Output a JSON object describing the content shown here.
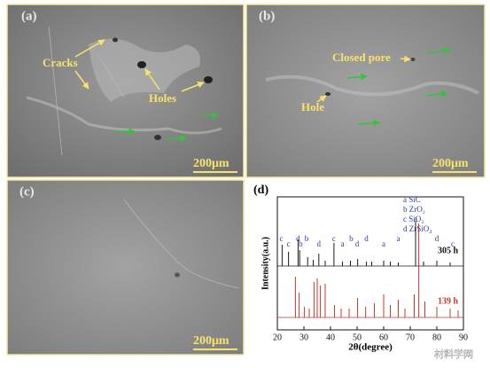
{
  "panels": [
    {
      "label": "(a)",
      "scale_bar": "200μm",
      "annotations": [
        "Cracks",
        "Holes"
      ]
    },
    {
      "label": "(b)",
      "scale_bar": "200μm",
      "annotations": [
        "Closed pore",
        "Hole"
      ]
    },
    {
      "label": "(c)",
      "scale_bar": "200μm",
      "annotations": []
    }
  ],
  "chart_data": {
    "type": "xrd",
    "panel_label": "(d)",
    "xlabel": "2θ(degree)",
    "ylabel": "Intensity(a.u.)",
    "xlim": [
      20,
      90
    ],
    "xticks": [
      20,
      30,
      40,
      50,
      60,
      70,
      80,
      90
    ],
    "legend": [
      "a SiC",
      "b ZrO₂",
      "c SiO₂",
      "d ZrSiO₄"
    ],
    "series": [
      {
        "name": "305 h",
        "color": "#1a1a1a",
        "peaks_x": [
          21.8,
          24.2,
          27.8,
          28.4,
          31.4,
          33.5,
          35.6,
          38.0,
          41.3,
          44.5,
          47.5,
          50.2,
          53.5,
          55.5,
          60.0,
          62.5,
          65.5,
          72.0,
          75.0,
          80.0,
          85.0
        ],
        "values": [
          24,
          16,
          30,
          18,
          10,
          7,
          14,
          6,
          26,
          5,
          6,
          8,
          5,
          5,
          6,
          5,
          4,
          50,
          5,
          6,
          4
        ]
      },
      {
        "name": "139 h",
        "color": "#c0392b",
        "peaks_x": [
          26.8,
          28.2,
          30.2,
          32.0,
          33.8,
          35.0,
          36.2,
          38.0,
          41.5,
          44.0,
          47.0,
          50.2,
          53.2,
          56.5,
          60.0,
          62.5,
          65.5,
          68.0,
          71.5,
          73.2,
          75.5,
          80.0,
          85.0,
          88.0
        ],
        "values": [
          46,
          28,
          12,
          10,
          40,
          44,
          36,
          38,
          14,
          10,
          10,
          22,
          12,
          16,
          26,
          14,
          20,
          10,
          26,
          106,
          18,
          12,
          10,
          8
        ]
      }
    ],
    "peak_labels": [
      {
        "x": 21.5,
        "label": "c"
      },
      {
        "x": 24.2,
        "label": "c"
      },
      {
        "x": 27.8,
        "label": "d"
      },
      {
        "x": 28.8,
        "label": "b"
      },
      {
        "x": 31.0,
        "label": "b"
      },
      {
        "x": 35.6,
        "label": "d"
      },
      {
        "x": 41.3,
        "label": "c"
      },
      {
        "x": 44.5,
        "label": "a"
      },
      {
        "x": 47.8,
        "label": "b"
      },
      {
        "x": 50.0,
        "label": "d"
      },
      {
        "x": 53.5,
        "label": "d"
      },
      {
        "x": 60.0,
        "label": "a"
      },
      {
        "x": 65.5,
        "label": "a"
      },
      {
        "x": 72.0,
        "label": "a"
      },
      {
        "x": 80.0,
        "label": "d"
      },
      {
        "x": 86.0,
        "label": "c"
      }
    ]
  },
  "watermark": "材料学网"
}
